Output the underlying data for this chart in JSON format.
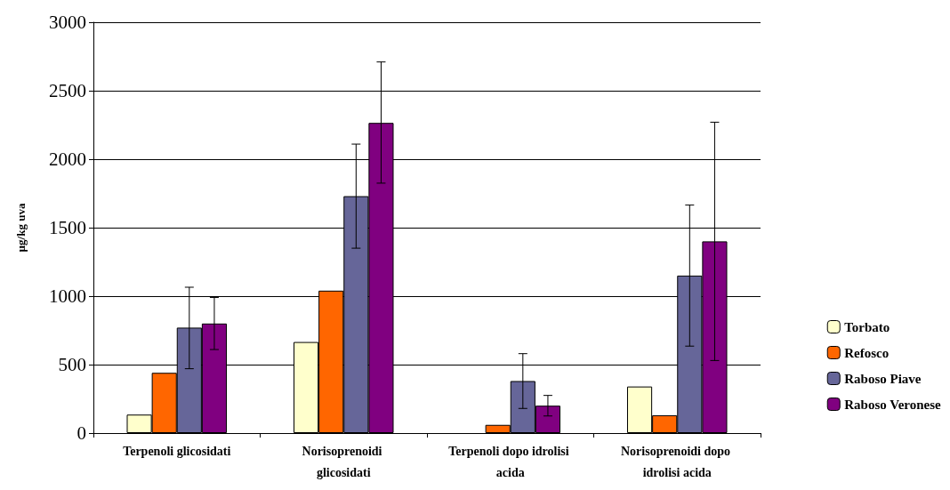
{
  "chart_data": {
    "type": "bar",
    "ylabel": "µg/kg uva",
    "categories": [
      "Terpenoli glicosidati",
      "Norisoprenoidi glicosidati",
      "Terpenoli dopo idrolisi acida",
      "Norisoprenoidi dopo idrolisi acida"
    ],
    "series": [
      {
        "name": "Torbato",
        "color": "#ffffcc",
        "values": [
          135,
          665,
          null,
          340
        ]
      },
      {
        "name": "Refosco",
        "color": "#ff6600",
        "values": [
          440,
          1040,
          60,
          130
        ]
      },
      {
        "name": "Raboso Piave",
        "color": "#666699",
        "values": [
          770,
          1730,
          380,
          1150
        ],
        "errors": [
          [
            470,
            1065
          ],
          [
            1350,
            2110
          ],
          [
            180,
            580
          ],
          [
            635,
            1665
          ]
        ]
      },
      {
        "name": "Raboso Veronese",
        "color": "#800080",
        "values": [
          800,
          2265,
          200,
          1400
        ],
        "errors": [
          [
            610,
            990
          ],
          [
            1825,
            2710
          ],
          [
            125,
            275
          ],
          [
            530,
            2270
          ]
        ]
      }
    ],
    "ylim": [
      0,
      3000
    ],
    "yticks": [
      0,
      500,
      1000,
      1500,
      2000,
      2500,
      3000
    ],
    "grid": "y",
    "legend": "right"
  }
}
